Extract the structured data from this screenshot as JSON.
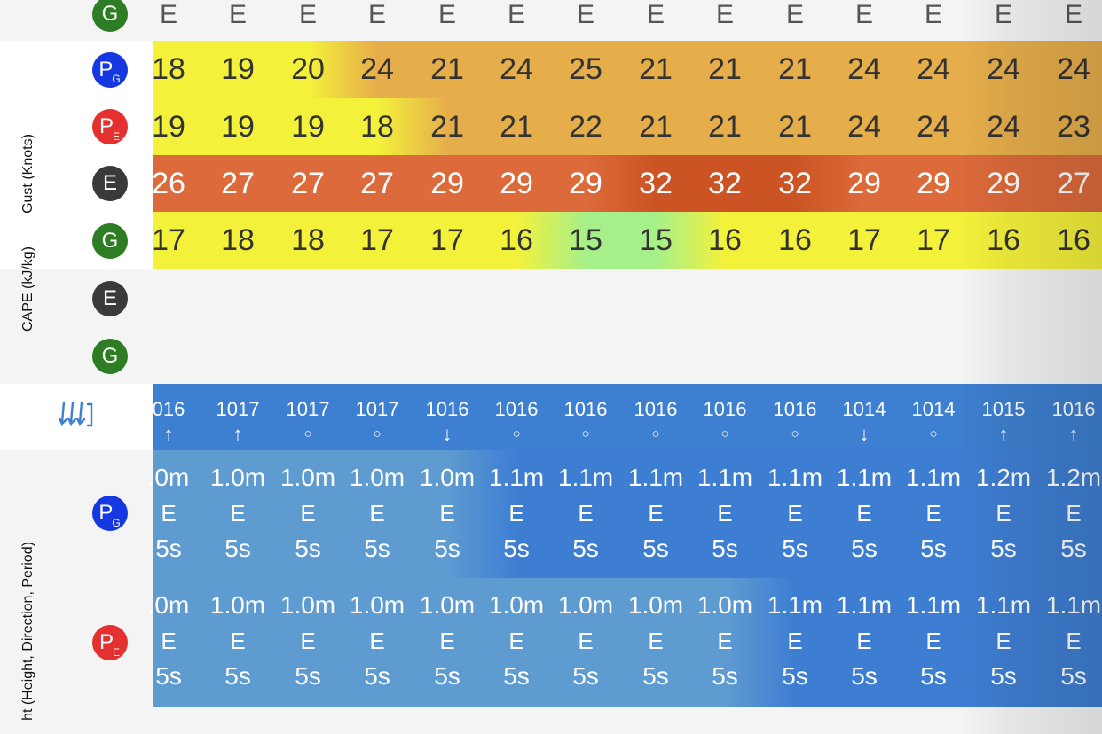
{
  "columns_x": [
    190,
    268,
    347,
    425,
    504,
    582,
    660,
    739,
    817,
    896,
    974,
    1052,
    1131,
    1210
  ],
  "top_direction_row": {
    "model_badge": {
      "letter": "G",
      "sub": "",
      "color": "#2e7d24"
    },
    "values": [
      "E",
      "E",
      "E",
      "E",
      "E",
      "E",
      "E",
      "E",
      "E",
      "E",
      "E",
      "E",
      "E",
      "E"
    ]
  },
  "gust": {
    "section_label": "Gust (Knots)",
    "rows": [
      {
        "badge": {
          "letter": "P",
          "sub": "G",
          "color": "#1638e0"
        },
        "values": [
          "18",
          "19",
          "20",
          "24",
          "21",
          "24",
          "25",
          "21",
          "21",
          "21",
          "24",
          "24",
          "24",
          "24"
        ],
        "colors": [
          "#f4f13b",
          "#f4f13b",
          "#f4f13b",
          "#e6ae4b",
          "#e6ae4b",
          "#e6ae4b",
          "#e6ae4b",
          "#e6ae4b",
          "#e6ae4b",
          "#e6ae4b",
          "#e6ae4b",
          "#e6ae4b",
          "#e6ae4b",
          "#e6ae4b"
        ]
      },
      {
        "badge": {
          "letter": "P",
          "sub": "E",
          "color": "#e53030"
        },
        "values": [
          "19",
          "19",
          "19",
          "18",
          "21",
          "21",
          "22",
          "21",
          "21",
          "21",
          "24",
          "24",
          "24",
          "23"
        ],
        "colors": [
          "#f4f13b",
          "#f4f13b",
          "#f4f13b",
          "#f4f13b",
          "#e6ae4b",
          "#e6ae4b",
          "#e6ae4b",
          "#e6ae4b",
          "#e6ae4b",
          "#e6ae4b",
          "#e6ae4b",
          "#e6ae4b",
          "#e6ae4b",
          "#e6ae4b"
        ]
      },
      {
        "badge": {
          "letter": "E",
          "sub": "",
          "color": "#3a3a3a"
        },
        "values": [
          "26",
          "27",
          "27",
          "27",
          "29",
          "29",
          "29",
          "32",
          "32",
          "32",
          "29",
          "29",
          "29",
          "27"
        ],
        "colors": [
          "#dc6a3a",
          "#dc6a3a",
          "#dc6a3a",
          "#dc6a3a",
          "#dc6a3a",
          "#dc6a3a",
          "#dc6a3a",
          "#cc5424",
          "#cc5424",
          "#cc5424",
          "#dc6a3a",
          "#dc6a3a",
          "#dc6a3a",
          "#dc6a3a"
        ],
        "light_text": true
      },
      {
        "badge": {
          "letter": "G",
          "sub": "",
          "color": "#2e7d24"
        },
        "values": [
          "17",
          "18",
          "18",
          "17",
          "17",
          "16",
          "15",
          "15",
          "16",
          "16",
          "17",
          "17",
          "16",
          "16"
        ],
        "colors": [
          "#f4f13b",
          "#f4f13b",
          "#f4f13b",
          "#f4f13b",
          "#f4f13b",
          "#f4f13b",
          "#a6f08a",
          "#a6f08a",
          "#f4f13b",
          "#f4f13b",
          "#f4f13b",
          "#f4f13b",
          "#f4f13b",
          "#f4f13b"
        ]
      }
    ]
  },
  "cape": {
    "section_label": "CAPE (kJ/kg)",
    "rows": [
      {
        "badge": {
          "letter": "E",
          "sub": "",
          "color": "#3a3a3a"
        }
      },
      {
        "badge": {
          "letter": "G",
          "sub": "",
          "color": "#2e7d24"
        }
      }
    ]
  },
  "pressure": {
    "icon": "pressure-trend-icon",
    "values": [
      "016",
      "1017",
      "1017",
      "1017",
      "1016",
      "1016",
      "1016",
      "1016",
      "1016",
      "1016",
      "1014",
      "1014",
      "1015",
      "1016"
    ],
    "trends": [
      "up",
      "up",
      "steady",
      "steady",
      "down",
      "steady",
      "steady",
      "steady",
      "steady",
      "steady",
      "down",
      "steady",
      "up",
      "up"
    ],
    "bg": "#3d7fd0"
  },
  "wave": {
    "section_label": "ht (Height, Direction, Period)",
    "rows": [
      {
        "badge": {
          "letter": "P",
          "sub": "G",
          "color": "#1638e0"
        },
        "heights": [
          ".0m",
          "1.0m",
          "1.0m",
          "1.0m",
          "1.0m",
          "1.1m",
          "1.1m",
          "1.1m",
          "1.1m",
          "1.1m",
          "1.1m",
          "1.1m",
          "1.2m",
          "1.2m"
        ],
        "directions": [
          "E",
          "E",
          "E",
          "E",
          "E",
          "E",
          "E",
          "E",
          "E",
          "E",
          "E",
          "E",
          "E",
          "E"
        ],
        "periods": [
          "5s",
          "5s",
          "5s",
          "5s",
          "5s",
          "5s",
          "5s",
          "5s",
          "5s",
          "5s",
          "5s",
          "5s",
          "5s",
          "5s"
        ],
        "colors": [
          "#5e9bd1",
          "#5e9bd1",
          "#5e9bd1",
          "#5e9bd1",
          "#5e9bd1",
          "#3e7ed2",
          "#3e7ed2",
          "#3e7ed2",
          "#3e7ed2",
          "#3e7ed2",
          "#3e7ed2",
          "#3e7ed2",
          "#3e7ed2",
          "#3e7ed2"
        ]
      },
      {
        "badge": {
          "letter": "P",
          "sub": "E",
          "color": "#e53030"
        },
        "heights": [
          ".0m",
          "1.0m",
          "1.0m",
          "1.0m",
          "1.0m",
          "1.0m",
          "1.0m",
          "1.0m",
          "1.0m",
          "1.1m",
          "1.1m",
          "1.1m",
          "1.1m",
          "1.1m"
        ],
        "directions": [
          "E",
          "E",
          "E",
          "E",
          "E",
          "E",
          "E",
          "E",
          "E",
          "E",
          "E",
          "E",
          "E",
          "E"
        ],
        "periods": [
          "5s",
          "5s",
          "5s",
          "5s",
          "5s",
          "5s",
          "5s",
          "5s",
          "5s",
          "5s",
          "5s",
          "5s",
          "5s",
          "5s"
        ],
        "colors": [
          "#5e9bd1",
          "#5e9bd1",
          "#5e9bd1",
          "#5e9bd1",
          "#5e9bd1",
          "#5e9bd1",
          "#5e9bd1",
          "#5e9bd1",
          "#5e9bd1",
          "#3e7ed2",
          "#3e7ed2",
          "#3e7ed2",
          "#3e7ed2",
          "#3e7ed2"
        ]
      }
    ]
  }
}
